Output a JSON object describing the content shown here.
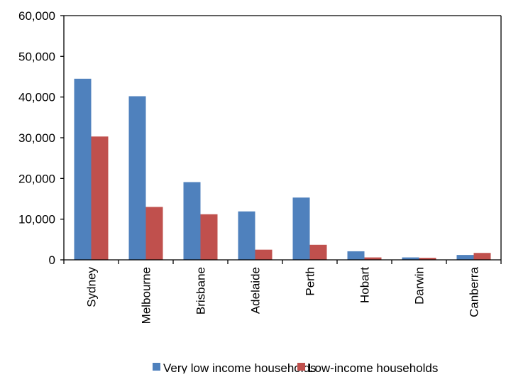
{
  "chart_data": {
    "type": "bar",
    "title": "",
    "xlabel": "",
    "ylabel": "",
    "categories": [
      "Sydney",
      "Melbourne",
      "Brisbane",
      "Adelaide",
      "Perth",
      "Hobart",
      "Darwin",
      "Canberra"
    ],
    "series": [
      {
        "name": "Very low income households",
        "color": "#4f81bd",
        "values": [
          44500,
          40200,
          19100,
          11900,
          15300,
          2100,
          600,
          1200
        ]
      },
      {
        "name": "Low-income households",
        "color": "#c0504d",
        "values": [
          30300,
          13000,
          11200,
          2500,
          3700,
          600,
          500,
          1700
        ]
      }
    ],
    "ylim": [
      0,
      60000
    ],
    "yticks": [
      0,
      10000,
      20000,
      30000,
      40000,
      50000,
      60000
    ],
    "ytick_labels": [
      "0",
      "10,000",
      "20,000",
      "30,000",
      "40,000",
      "50,000",
      "60,000"
    ],
    "grid": false,
    "legend_position": "bottom"
  }
}
